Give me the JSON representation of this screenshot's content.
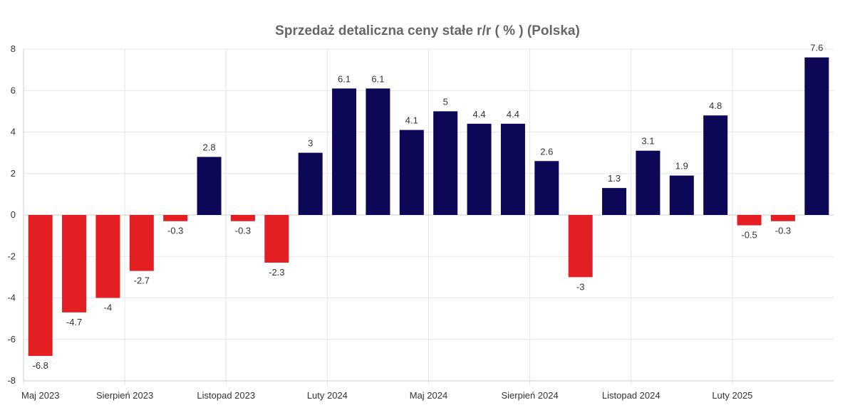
{
  "chart_data": {
    "type": "bar",
    "title": "Sprzedaż detaliczna ceny stałe r/r ( % ) (Polska)",
    "categories": [
      "2023-05",
      "2023-06",
      "2023-07",
      "2023-08",
      "2023-09",
      "2023-10",
      "2023-11",
      "2023-12",
      "2024-01",
      "2024-02",
      "2024-03",
      "2024-04",
      "2024-05",
      "2024-06",
      "2024-07",
      "2024-08",
      "2024-09",
      "2024-10",
      "2024-11",
      "2024-12",
      "2025-01",
      "2025-02",
      "2025-03",
      "2025-04"
    ],
    "values": [
      -6.8,
      -4.7,
      -4,
      -2.7,
      -0.3,
      2.8,
      -0.3,
      -2.3,
      3,
      6.1,
      6.1,
      4.1,
      5,
      4.4,
      4.4,
      2.6,
      -3,
      1.3,
      3.1,
      1.9,
      4.8,
      -0.5,
      -0.3,
      7.6
    ],
    "data_labels": [
      "-6.8",
      "-4.7",
      "-4",
      "-2.7",
      "-0.3",
      "2.8",
      "-0.3",
      "-2.3",
      "3",
      "6.1",
      "6.1",
      "4.1",
      "5",
      "4.4",
      "4.4",
      "2.6",
      "-3",
      "1.3",
      "3.1",
      "1.9",
      "4.8",
      "-0.5",
      "-0.3",
      "7.6"
    ],
    "x_tick_labels": [
      {
        "label": "Maj 2023",
        "index": 0
      },
      {
        "label": "Sierpień 2023",
        "index": 3
      },
      {
        "label": "Listopad 2023",
        "index": 6
      },
      {
        "label": "Luty 2024",
        "index": 9
      },
      {
        "label": "Maj 2024",
        "index": 12
      },
      {
        "label": "Sierpień 2024",
        "index": 15
      },
      {
        "label": "Listopad 2024",
        "index": 18
      },
      {
        "label": "Luty 2025",
        "index": 21
      }
    ],
    "y_ticks": [
      "8",
      "6",
      "4",
      "2",
      "0",
      "-2",
      "-4",
      "-6",
      "-8"
    ],
    "ylim": [
      -8,
      8
    ],
    "grid": true,
    "legend": false,
    "colors": {
      "positive": "#0c0756",
      "negative": "#e31f23",
      "grid": "#e6e6e6",
      "axis": "#cccccc"
    }
  }
}
